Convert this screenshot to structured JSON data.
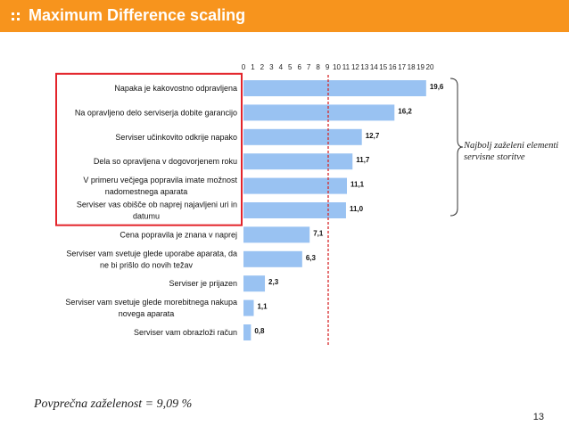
{
  "header": {
    "title": "Maximum Difference scaling",
    "accent": "#f7941d"
  },
  "chart_data": {
    "type": "bar",
    "orientation": "horizontal",
    "categories": [
      [
        "Napaka je kakovostno odpravljena"
      ],
      [
        "Na opravljeno delo serviserja dobite garancijo"
      ],
      [
        "Serviser učinkovito odkrije napako"
      ],
      [
        "Dela so opravljena v dogovorjenem roku"
      ],
      [
        "V primeru večjega popravila imate možnost",
        "nadomestnega aparata"
      ],
      [
        "Serviser vas obišče ob naprej najavljeni uri in",
        "datumu"
      ],
      [
        "Cena popravila je znana v naprej"
      ],
      [
        "Serviser vam svetuje glede uporabe aparata, da",
        "ne bi prišlo do novih težav"
      ],
      [
        "Serviser je prijazen"
      ],
      [
        "Serviser vam svetuje glede morebitnega nakupa",
        "novega aparata"
      ],
      [
        "Serviser vam obrazloži račun"
      ]
    ],
    "values": [
      19.6,
      16.2,
      12.7,
      11.7,
      11.1,
      11.0,
      7.1,
      6.3,
      2.3,
      1.1,
      0.8
    ],
    "value_labels": [
      "19,6",
      "16,2",
      "12,7",
      "11,7",
      "11,1",
      "11,0",
      "7,1",
      "6,3",
      "2,3",
      "1,1",
      "0,8"
    ],
    "xticks": [
      0,
      1,
      2,
      3,
      4,
      5,
      6,
      7,
      8,
      9,
      10,
      11,
      12,
      13,
      14,
      15,
      16,
      17,
      18,
      19,
      20
    ],
    "xlim": [
      0,
      20
    ],
    "axis_position": "top",
    "reference_line": 9.09,
    "highlighted_rows": 6,
    "annotation": [
      "Najbolj zaželeni elementi",
      "servisne storitve"
    ],
    "bar_color": "#99c2f2",
    "highlight_color": "#e3242b",
    "reference_color": "#d62728"
  },
  "footer": {
    "note": "Povprečna zaželenost = 9,09 %",
    "page": "13"
  }
}
